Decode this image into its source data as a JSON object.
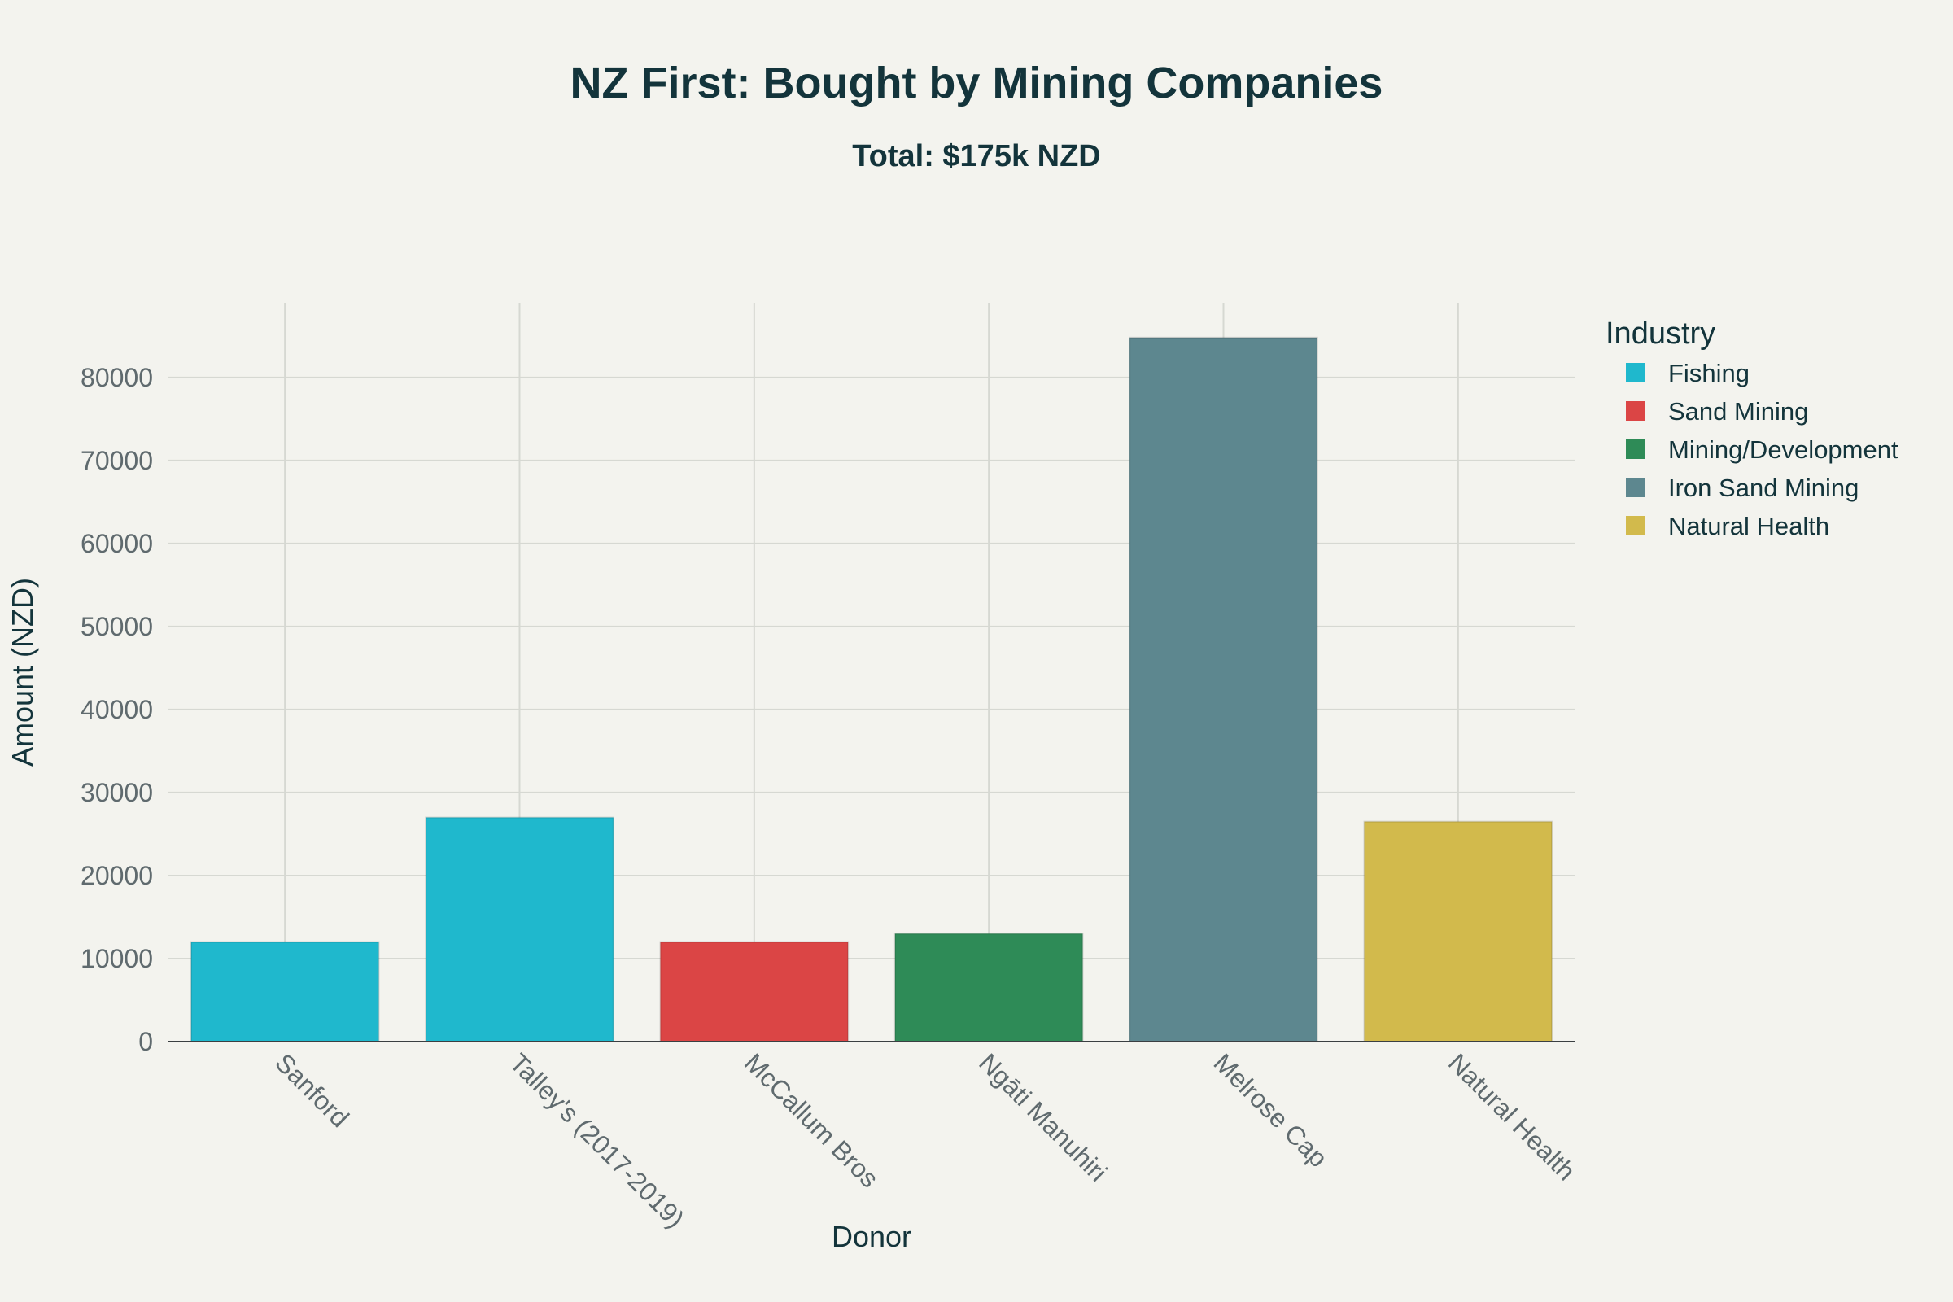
{
  "chart_data": {
    "type": "bar",
    "title": "NZ First: Bought by Mining Companies",
    "subtitle": "Total: $175k NZD",
    "xlabel": "Donor",
    "ylabel": "Amount (NZD)",
    "ylim": [
      0,
      89000
    ],
    "yticks": [
      0,
      10000,
      20000,
      30000,
      40000,
      50000,
      60000,
      70000,
      80000
    ],
    "categories": [
      "Sanford",
      "Talley's (2017-2019)",
      "McCallum Bros",
      "Ngāti Manuhiri",
      "Melrose Cap",
      "Natural Health"
    ],
    "values": [
      12000,
      27000,
      12000,
      13000,
      84800,
      26500
    ],
    "industry": [
      "Fishing",
      "Fishing",
      "Sand Mining",
      "Mining/Development",
      "Iron Sand Mining",
      "Natural Health"
    ],
    "legend": {
      "title": "Industry",
      "placement": "right",
      "items": [
        {
          "label": "Fishing",
          "color": "#1FB8CD"
        },
        {
          "label": "Sand Mining",
          "color": "#DB4545"
        },
        {
          "label": "Mining/Development",
          "color": "#2E8B57"
        },
        {
          "label": "Iron Sand Mining",
          "color": "#5D878F"
        },
        {
          "label": "Natural Health",
          "color": "#D2BA4C"
        }
      ]
    },
    "grid": true
  }
}
